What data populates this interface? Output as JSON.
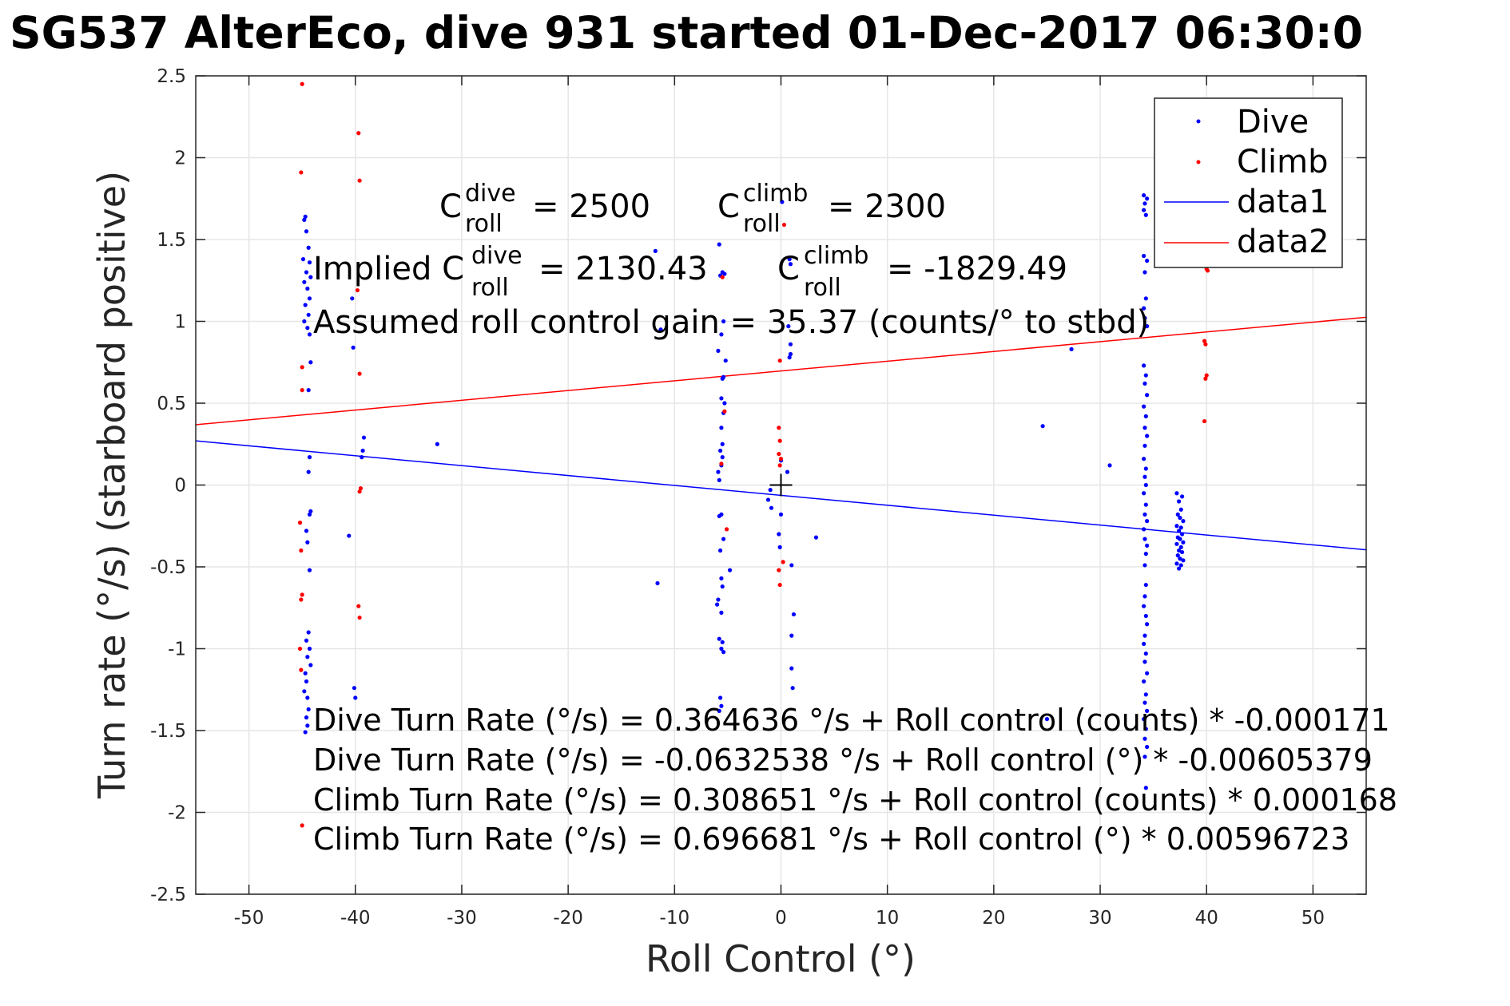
{
  "chart_data": {
    "type": "scatter",
    "title": "SG537 AlterEco, dive 931 started 01-Dec-2017 06:30:0",
    "xlabel": "Roll Control (°)",
    "ylabel": "Turn rate (°/s) (starboard positive)",
    "xlim": [
      -55,
      55
    ],
    "ylim": [
      -2.5,
      2.5
    ],
    "xticks": [
      "-50",
      "-40",
      "-30",
      "-20",
      "-10",
      "0",
      "10",
      "20",
      "30",
      "40",
      "50"
    ],
    "yticks": [
      "2.5",
      "2",
      "1.5",
      "1",
      "0.5",
      "0",
      "-0.5",
      "-1",
      "-1.5",
      "-2",
      "-2.5"
    ],
    "grid": true,
    "legend_position": "top-right",
    "colors": {
      "dive": "#0000ff",
      "climb": "#ff0000",
      "axes": "#262626",
      "grid": "#e6e6e6"
    },
    "legend": [
      "Dive",
      "Climb",
      "data1",
      "data2"
    ],
    "series": [
      {
        "name": "Dive",
        "marker": "dot",
        "points": [
          [
            -44.7,
            1.64
          ],
          [
            -44.8,
            1.62
          ],
          [
            -44.6,
            1.55
          ],
          [
            -44.4,
            1.45
          ],
          [
            -44.9,
            1.38
          ],
          [
            -44.3,
            1.36
          ],
          [
            -44.6,
            1.3
          ],
          [
            -44.2,
            1.27
          ],
          [
            -44.8,
            1.24
          ],
          [
            -44.5,
            1.2
          ],
          [
            -44.3,
            1.14
          ],
          [
            -44.7,
            1.1
          ],
          [
            -44.4,
            1.04
          ],
          [
            -44.8,
            1.0
          ],
          [
            -44.5,
            0.96
          ],
          [
            -44.3,
            0.92
          ],
          [
            -44.2,
            0.75
          ],
          [
            -44.4,
            0.58
          ],
          [
            -44.3,
            0.17
          ],
          [
            -44.4,
            0.08
          ],
          [
            -44.2,
            -0.16
          ],
          [
            -44.3,
            -0.18
          ],
          [
            -44.6,
            -0.28
          ],
          [
            -44.5,
            -0.35
          ],
          [
            -44.3,
            -0.52
          ],
          [
            -44.4,
            -0.9
          ],
          [
            -44.6,
            -0.95
          ],
          [
            -44.3,
            -1.0
          ],
          [
            -44.5,
            -1.05
          ],
          [
            -44.2,
            -1.1
          ],
          [
            -44.7,
            -1.15
          ],
          [
            -44.6,
            -1.2
          ],
          [
            -44.8,
            -1.26
          ],
          [
            -44.5,
            -1.3
          ],
          [
            -44.4,
            -1.37
          ],
          [
            -44.6,
            -1.42
          ],
          [
            -44.5,
            -1.47
          ],
          [
            -44.7,
            -1.51
          ],
          [
            -40.2,
            0.84
          ],
          [
            -40.3,
            1.14
          ],
          [
            -39.2,
            0.29
          ],
          [
            -39.3,
            0.21
          ],
          [
            -39.4,
            0.17
          ],
          [
            -32.3,
            0.25
          ],
          [
            -40.6,
            -0.31
          ],
          [
            -40.1,
            -1.24
          ],
          [
            -40.0,
            -1.3
          ],
          [
            -11.8,
            1.43
          ],
          [
            -11.6,
            -0.6
          ],
          [
            -11.3,
            0.95
          ],
          [
            -5.8,
            1.47
          ],
          [
            -5.5,
            1.3
          ],
          [
            -5.3,
            1.29
          ],
          [
            -5.7,
            1.28
          ],
          [
            -5.4,
            1.0
          ],
          [
            -5.6,
            0.92
          ],
          [
            -5.9,
            0.82
          ],
          [
            -5.2,
            0.76
          ],
          [
            -5.4,
            0.66
          ],
          [
            -5.5,
            0.65
          ],
          [
            -5.6,
            0.53
          ],
          [
            -5.3,
            0.5
          ],
          [
            -5.4,
            0.44
          ],
          [
            -5.6,
            0.35
          ],
          [
            -5.5,
            0.25
          ],
          [
            -5.7,
            0.21
          ],
          [
            -5.5,
            0.17
          ],
          [
            -5.6,
            0.12
          ],
          [
            -5.9,
            0.08
          ],
          [
            -5.8,
            0.03
          ],
          [
            -5.6,
            -0.18
          ],
          [
            -5.8,
            -0.19
          ],
          [
            -5.4,
            -0.33
          ],
          [
            -5.7,
            -0.4
          ],
          [
            -4.8,
            -0.52
          ],
          [
            -5.6,
            -0.57
          ],
          [
            -5.5,
            -0.62
          ],
          [
            -5.9,
            -0.7
          ],
          [
            -6.0,
            -0.73
          ],
          [
            -5.6,
            -0.78
          ],
          [
            -5.8,
            -0.94
          ],
          [
            -5.5,
            -0.96
          ],
          [
            -5.6,
            -1.0
          ],
          [
            -5.4,
            -1.02
          ],
          [
            -5.7,
            -1.3
          ],
          [
            -5.6,
            -1.35
          ],
          [
            -5.8,
            -1.38
          ],
          [
            0.1,
            1.73
          ],
          [
            0.8,
            1.38
          ],
          [
            0.9,
            1.35
          ],
          [
            0.7,
            0.97
          ],
          [
            0.9,
            0.86
          ],
          [
            0.9,
            0.8
          ],
          [
            0.8,
            0.78
          ],
          [
            0.0,
            0.15
          ],
          [
            0.6,
            0.08
          ],
          [
            -1.0,
            -0.03
          ],
          [
            -1.2,
            -0.09
          ],
          [
            -0.9,
            -0.14
          ],
          [
            0.0,
            -0.18
          ],
          [
            -0.2,
            -0.3
          ],
          [
            -0.1,
            -0.38
          ],
          [
            1.0,
            -0.49
          ],
          [
            3.3,
            -0.32
          ],
          [
            1.2,
            -0.79
          ],
          [
            1.0,
            -0.92
          ],
          [
            1.0,
            -1.12
          ],
          [
            1.1,
            -1.24
          ],
          [
            24.6,
            0.36
          ],
          [
            27.3,
            0.83
          ],
          [
            30.9,
            0.12
          ],
          [
            25.0,
            -1.43
          ],
          [
            34.1,
            1.77
          ],
          [
            34.4,
            1.75
          ],
          [
            34.2,
            1.72
          ],
          [
            34.1,
            1.68
          ],
          [
            34.3,
            1.65
          ],
          [
            34.1,
            1.4
          ],
          [
            34.4,
            1.37
          ],
          [
            34.2,
            1.3
          ],
          [
            34.3,
            1.14
          ],
          [
            34.1,
            1.08
          ],
          [
            34.2,
            1.02
          ],
          [
            34.4,
            0.97
          ],
          [
            34.1,
            0.73
          ],
          [
            34.3,
            0.67
          ],
          [
            34.2,
            0.62
          ],
          [
            34.4,
            0.55
          ],
          [
            34.1,
            0.48
          ],
          [
            34.3,
            0.42
          ],
          [
            34.2,
            0.35
          ],
          [
            34.4,
            0.3
          ],
          [
            34.2,
            0.24
          ],
          [
            34.1,
            0.16
          ],
          [
            34.3,
            0.1
          ],
          [
            34.2,
            0.05
          ],
          [
            34.3,
            0.0
          ],
          [
            34.1,
            -0.05
          ],
          [
            34.3,
            -0.12
          ],
          [
            34.2,
            -0.18
          ],
          [
            34.4,
            -0.22
          ],
          [
            34.1,
            -0.27
          ],
          [
            34.2,
            -0.33
          ],
          [
            34.4,
            -0.37
          ],
          [
            34.3,
            -0.42
          ],
          [
            34.2,
            -0.49
          ],
          [
            34.3,
            -0.61
          ],
          [
            34.2,
            -0.68
          ],
          [
            34.1,
            -0.74
          ],
          [
            34.3,
            -0.8
          ],
          [
            34.4,
            -0.85
          ],
          [
            34.2,
            -0.92
          ],
          [
            34.1,
            -0.97
          ],
          [
            34.3,
            -1.03
          ],
          [
            34.2,
            -1.08
          ],
          [
            34.4,
            -1.15
          ],
          [
            34.1,
            -1.2
          ],
          [
            34.3,
            -1.28
          ],
          [
            34.2,
            -1.33
          ],
          [
            34.4,
            -1.38
          ],
          [
            34.1,
            -1.43
          ],
          [
            34.3,
            -1.49
          ],
          [
            34.2,
            -1.55
          ],
          [
            34.4,
            -1.6
          ],
          [
            34.2,
            -1.66
          ],
          [
            34.3,
            -1.85
          ],
          [
            37.2,
            -0.05
          ],
          [
            37.7,
            -0.07
          ],
          [
            37.4,
            -0.1
          ],
          [
            37.6,
            -0.15
          ],
          [
            37.3,
            -0.18
          ],
          [
            37.5,
            -0.2
          ],
          [
            37.8,
            -0.22
          ],
          [
            37.2,
            -0.25
          ],
          [
            37.6,
            -0.26
          ],
          [
            37.4,
            -0.28
          ],
          [
            37.7,
            -0.3
          ],
          [
            37.3,
            -0.32
          ],
          [
            37.5,
            -0.33
          ],
          [
            37.8,
            -0.35
          ],
          [
            37.2,
            -0.36
          ],
          [
            37.6,
            -0.38
          ],
          [
            37.4,
            -0.4
          ],
          [
            37.7,
            -0.41
          ],
          [
            37.3,
            -0.43
          ],
          [
            37.5,
            -0.45
          ],
          [
            37.8,
            -0.46
          ],
          [
            37.2,
            -0.48
          ],
          [
            37.6,
            -0.49
          ],
          [
            37.4,
            -0.51
          ]
        ]
      },
      {
        "name": "Climb",
        "marker": "dot",
        "points": [
          [
            -45.0,
            2.45
          ],
          [
            -45.1,
            1.91
          ],
          [
            -45.0,
            0.72
          ],
          [
            -45.0,
            0.58
          ],
          [
            -45.2,
            -0.23
          ],
          [
            -45.1,
            -0.4
          ],
          [
            -45.0,
            -0.67
          ],
          [
            -45.1,
            -0.7
          ],
          [
            -45.2,
            -1.0
          ],
          [
            -45.1,
            -1.13
          ],
          [
            -45.0,
            -2.08
          ],
          [
            -39.7,
            2.15
          ],
          [
            -39.6,
            1.86
          ],
          [
            -39.8,
            1.19
          ],
          [
            -39.6,
            0.68
          ],
          [
            -39.5,
            -0.02
          ],
          [
            -39.6,
            -0.04
          ],
          [
            -39.7,
            -0.74
          ],
          [
            -39.6,
            -0.81
          ],
          [
            -5.6,
            0.13
          ],
          [
            -5.3,
            0.45
          ],
          [
            -5.5,
            1.27
          ],
          [
            -5.1,
            -0.27
          ],
          [
            0.3,
            1.59
          ],
          [
            -0.1,
            0.76
          ],
          [
            -0.2,
            0.35
          ],
          [
            -0.1,
            0.27
          ],
          [
            -0.2,
            0.19
          ],
          [
            0.0,
            0.16
          ],
          [
            -0.1,
            0.12
          ],
          [
            -0.2,
            -0.52
          ],
          [
            0.2,
            -0.47
          ],
          [
            -0.1,
            -0.61
          ],
          [
            39.8,
            0.88
          ],
          [
            39.9,
            0.86
          ],
          [
            40.0,
            0.67
          ],
          [
            39.9,
            0.65
          ],
          [
            39.8,
            0.39
          ],
          [
            40.0,
            1.32
          ],
          [
            40.1,
            1.31
          ]
        ]
      },
      {
        "name": "data1",
        "type": "line",
        "x": [
          -55,
          55
        ],
        "y": [
          0.2699,
          -0.396
        ]
      },
      {
        "name": "data2",
        "type": "line",
        "x": [
          -55,
          55
        ],
        "y": [
          0.3685,
          1.0249
        ]
      }
    ],
    "origin_marker": [
      0,
      0
    ],
    "annotations": {
      "c_dive_prefix": "C",
      "c_dive_sup": "dive",
      "c_dive_sub": "roll",
      "c_dive_value": "= 2500",
      "c_climb_prefix": "C",
      "c_climb_sup": "climb",
      "c_climb_sub": "roll",
      "c_climb_value": "= 2300",
      "implied_dive_prefix": "Implied C",
      "implied_dive_sup": "dive",
      "implied_dive_sub": "roll",
      "implied_dive_value": "= 2130.43",
      "implied_climb_prefix": "C",
      "implied_climb_sup": "climb",
      "implied_climb_sub": "roll",
      "implied_climb_value": "= -1829.49",
      "gain": "Assumed roll control gain = 35.37 (counts/° to stbd)",
      "equations": [
        "Dive Turn Rate (°/s) = 0.364636 °/s + Roll control (counts) * -0.000171",
        "Dive Turn Rate (°/s) = -0.0632538 °/s + Roll control (°) * -0.00605379",
        "Climb Turn Rate (°/s) = 0.308651 °/s + Roll control (counts) * 0.000168",
        "Climb Turn Rate (°/s) = 0.696681 °/s + Roll control (°) * 0.00596723"
      ]
    }
  }
}
